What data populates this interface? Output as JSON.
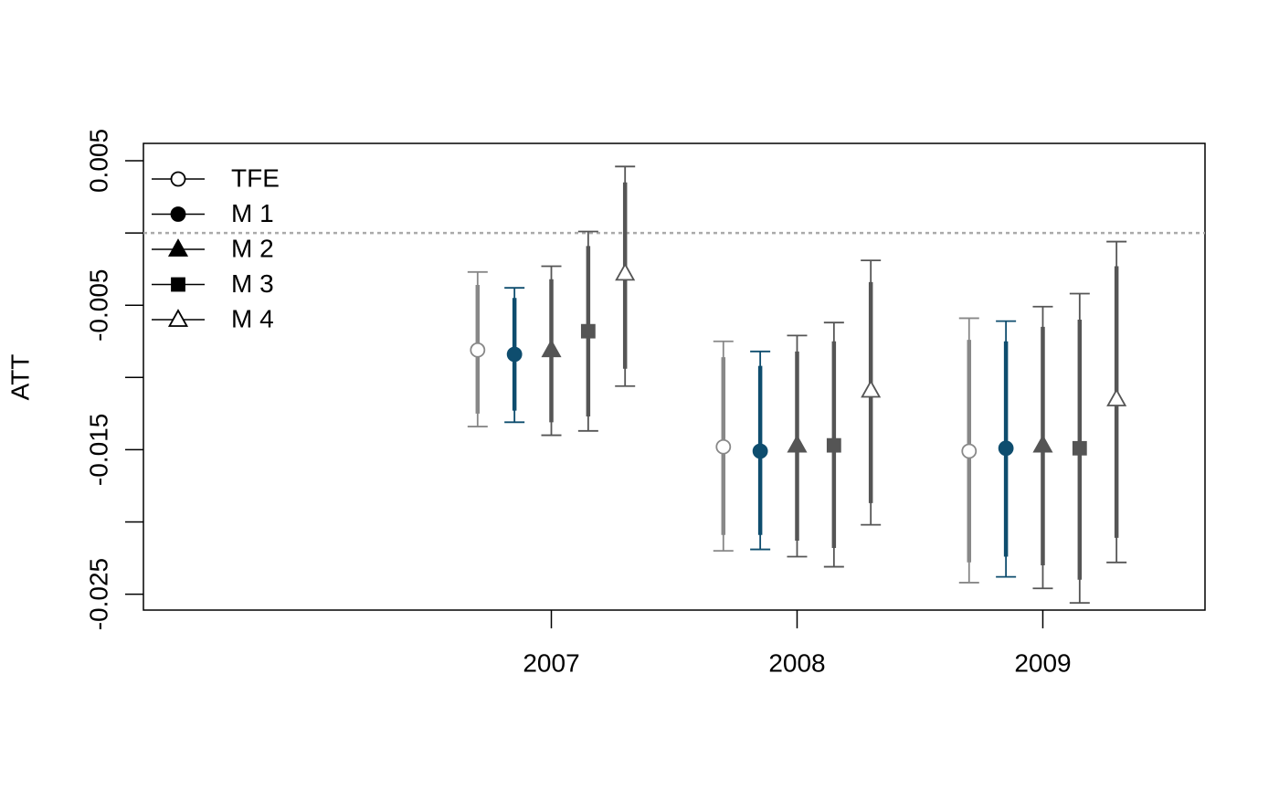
{
  "chart_data": {
    "type": "errorbar",
    "ylabel": "ATT",
    "x": [
      2007,
      2008,
      2009
    ],
    "xlim": [
      2005.34,
      2009.66
    ],
    "xticks": [
      2007,
      2008,
      2009
    ],
    "ylim": [
      -0.0261,
      0.0062
    ],
    "yticks": [
      0.005,
      -0.005,
      -0.015,
      -0.025
    ],
    "minor_yticks": [
      0,
      -0.01,
      -0.02
    ],
    "reference_line": 0,
    "legend": "top-left",
    "series": [
      {
        "name": "TFE",
        "color": "#888888",
        "marker": "circle-open",
        "values": [
          -0.0081,
          -0.0148,
          -0.0151
        ],
        "ci_inner_lower": [
          -0.0125,
          -0.0209,
          -0.0228
        ],
        "ci_inner_upper": [
          -0.0036,
          -0.0086,
          -0.0074
        ],
        "ci_outer_lower": [
          -0.0134,
          -0.022,
          -0.0242
        ],
        "ci_outer_upper": [
          -0.0027,
          -0.0075,
          -0.0059
        ]
      },
      {
        "name": "M 1",
        "color": "#0e4d6e",
        "marker": "circle",
        "values": [
          -0.0084,
          -0.0151,
          -0.0149
        ],
        "ci_inner_lower": [
          -0.0123,
          -0.0209,
          -0.0224
        ],
        "ci_inner_upper": [
          -0.0045,
          -0.0092,
          -0.0075
        ],
        "ci_outer_lower": [
          -0.0131,
          -0.0219,
          -0.0238
        ],
        "ci_outer_upper": [
          -0.0038,
          -0.0082,
          -0.0061
        ]
      },
      {
        "name": "M 2",
        "color": "#555555",
        "marker": "triangle",
        "values": [
          -0.0081,
          -0.0147,
          -0.0147
        ],
        "ci_inner_lower": [
          -0.0131,
          -0.0213,
          -0.023
        ],
        "ci_inner_upper": [
          -0.0032,
          -0.0082,
          -0.0065
        ],
        "ci_outer_lower": [
          -0.014,
          -0.0224,
          -0.0246
        ],
        "ci_outer_upper": [
          -0.0023,
          -0.0071,
          -0.0051
        ]
      },
      {
        "name": "M 3",
        "color": "#555555",
        "marker": "square",
        "values": [
          -0.0068,
          -0.0147,
          -0.0149
        ],
        "ci_inner_lower": [
          -0.0127,
          -0.0218,
          -0.024
        ],
        "ci_inner_upper": [
          -0.0009,
          -0.0075,
          -0.006
        ],
        "ci_outer_lower": [
          -0.0137,
          -0.0231,
          -0.0256
        ],
        "ci_outer_upper": [
          0.0001,
          -0.0062,
          -0.0042
        ]
      },
      {
        "name": "M 4",
        "color": "#555555",
        "marker": "triangle-open",
        "values": [
          -0.0028,
          -0.0109,
          -0.0115
        ],
        "ci_inner_lower": [
          -0.0094,
          -0.0187,
          -0.0211
        ],
        "ci_inner_upper": [
          0.0035,
          -0.0034,
          -0.0023
        ],
        "ci_outer_lower": [
          -0.0106,
          -0.0202,
          -0.0228
        ],
        "ci_outer_upper": [
          0.0046,
          -0.0019,
          -0.0006
        ]
      }
    ]
  }
}
